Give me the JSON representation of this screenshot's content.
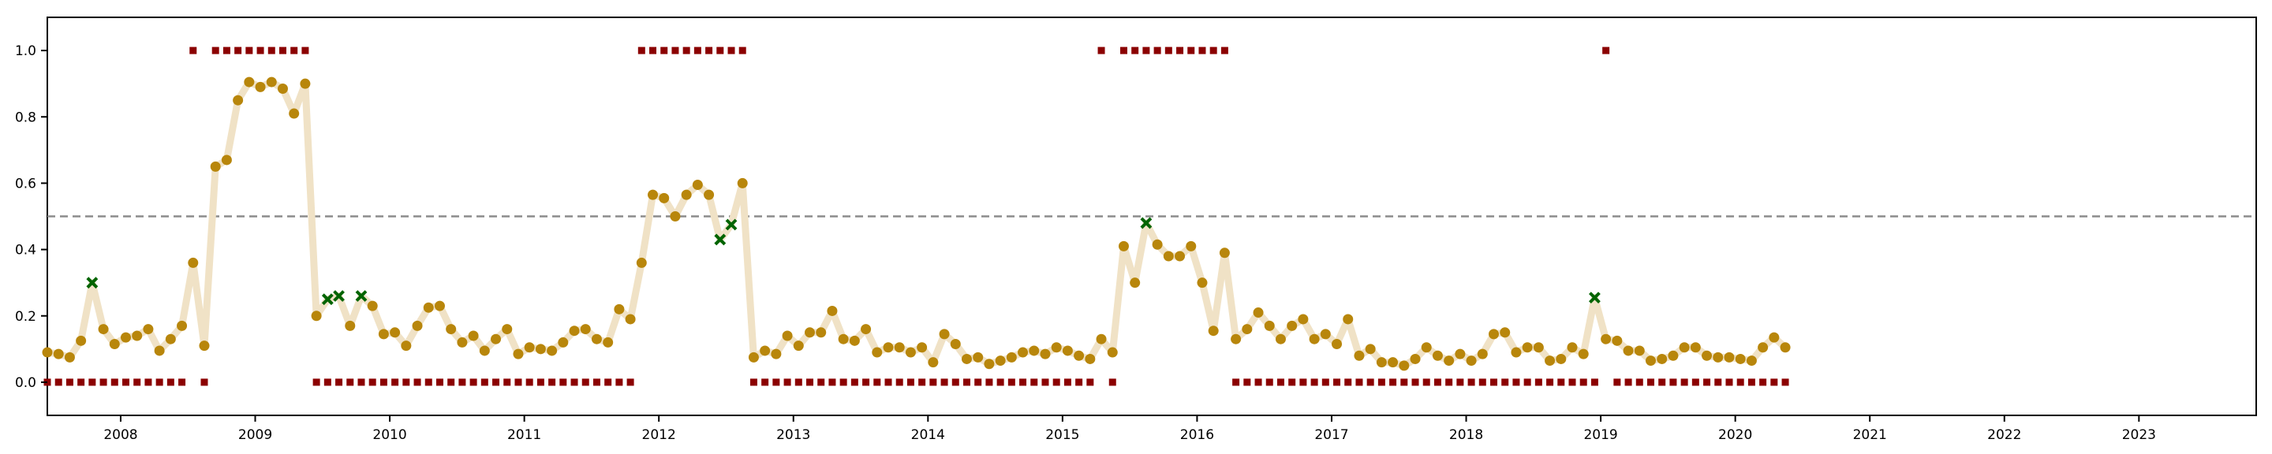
{
  "chart_data": {
    "type": "line",
    "x_axis": {
      "kind": "date",
      "range": [
        "2007-06-15",
        "2023-11-15"
      ],
      "ticks": [
        "2008",
        "2009",
        "2010",
        "2011",
        "2012",
        "2013",
        "2014",
        "2015",
        "2016",
        "2017",
        "2018",
        "2019",
        "2020",
        "2021",
        "2022",
        "2023"
      ]
    },
    "y_axis": {
      "range": [
        -0.1,
        1.1
      ],
      "ticks": [
        "0.0",
        "0.2",
        "0.4",
        "0.6",
        "0.8",
        "1.0"
      ]
    },
    "grid": false,
    "legend": "none",
    "reference_line": {
      "y": 0.5,
      "style": "dashed",
      "color": "#8c8c8c"
    },
    "colors": {
      "line": "#f0e2c6",
      "probability": "#b8860b",
      "flagged": "#006400",
      "binary": "#8b0000"
    },
    "x": [
      "2007-06",
      "2007-07",
      "2007-08",
      "2007-09",
      "2007-10",
      "2007-11",
      "2007-12",
      "2008-01",
      "2008-02",
      "2008-03",
      "2008-04",
      "2008-05",
      "2008-06",
      "2008-07",
      "2008-08",
      "2008-09",
      "2008-10",
      "2008-11",
      "2008-12",
      "2009-01",
      "2009-02",
      "2009-03",
      "2009-04",
      "2009-05",
      "2009-06",
      "2009-07",
      "2009-08",
      "2009-09",
      "2009-10",
      "2009-11",
      "2009-12",
      "2010-01",
      "2010-02",
      "2010-03",
      "2010-04",
      "2010-05",
      "2010-06",
      "2010-07",
      "2010-08",
      "2010-09",
      "2010-10",
      "2010-11",
      "2010-12",
      "2011-01",
      "2011-02",
      "2011-03",
      "2011-04",
      "2011-05",
      "2011-06",
      "2011-07",
      "2011-08",
      "2011-09",
      "2011-10",
      "2011-11",
      "2011-12",
      "2012-01",
      "2012-02",
      "2012-03",
      "2012-04",
      "2012-05",
      "2012-06",
      "2012-07",
      "2012-08",
      "2012-09",
      "2012-10",
      "2012-11",
      "2012-12",
      "2013-01",
      "2013-02",
      "2013-03",
      "2013-04",
      "2013-05",
      "2013-06",
      "2013-07",
      "2013-08",
      "2013-09",
      "2013-10",
      "2013-11",
      "2013-12",
      "2014-01",
      "2014-02",
      "2014-03",
      "2014-04",
      "2014-05",
      "2014-06",
      "2014-07",
      "2014-08",
      "2014-09",
      "2014-10",
      "2014-11",
      "2014-12",
      "2015-01",
      "2015-02",
      "2015-03",
      "2015-04",
      "2015-05",
      "2015-06",
      "2015-07",
      "2015-08",
      "2015-09",
      "2015-10",
      "2015-11",
      "2015-12",
      "2016-01",
      "2016-02",
      "2016-03",
      "2016-04",
      "2016-05",
      "2016-06",
      "2016-07",
      "2016-08",
      "2016-09",
      "2016-10",
      "2016-11",
      "2016-12",
      "2017-01",
      "2017-02",
      "2017-03",
      "2017-04",
      "2017-05",
      "2017-06",
      "2017-07",
      "2017-08",
      "2017-09",
      "2017-10",
      "2017-11",
      "2017-12",
      "2018-01",
      "2018-02",
      "2018-03",
      "2018-04",
      "2018-05",
      "2018-06",
      "2018-07",
      "2018-08",
      "2018-09",
      "2018-10",
      "2018-11",
      "2018-12",
      "2019-01",
      "2019-02",
      "2019-03",
      "2019-04",
      "2019-05",
      "2019-06",
      "2019-07",
      "2019-08",
      "2019-09",
      "2019-10",
      "2019-11",
      "2019-12",
      "2020-01",
      "2020-02",
      "2020-03",
      "2020-04",
      "2020-05"
    ],
    "series": [
      {
        "marker": "circle",
        "values": [
          0.09,
          0.085,
          0.075,
          0.125,
          0.3,
          0.16,
          0.115,
          0.135,
          0.14,
          0.16,
          0.095,
          0.13,
          0.17,
          0.36,
          0.11,
          0.65,
          0.67,
          0.85,
          0.905,
          0.89,
          0.905,
          0.885,
          0.81,
          0.9,
          0.2,
          0.25,
          0.26,
          0.17,
          0.26,
          0.23,
          0.145,
          0.15,
          0.11,
          0.17,
          0.225,
          0.23,
          0.16,
          0.12,
          0.14,
          0.095,
          0.13,
          0.16,
          0.085,
          0.105,
          0.1,
          0.095,
          0.12,
          0.155,
          0.16,
          0.13,
          0.12,
          0.22,
          0.19,
          0.36,
          0.565,
          0.555,
          0.5,
          0.565,
          0.595,
          0.565,
          0.43,
          0.475,
          0.6,
          0.075,
          0.095,
          0.085,
          0.14,
          0.11,
          0.15,
          0.15,
          0.215,
          0.13,
          0.125,
          0.16,
          0.09,
          0.105,
          0.105,
          0.09,
          0.105,
          0.06,
          0.145,
          0.115,
          0.07,
          0.075,
          0.055,
          0.065,
          0.075,
          0.09,
          0.095,
          0.085,
          0.105,
          0.095,
          0.08,
          0.07,
          0.13,
          0.09,
          0.41,
          0.3,
          0.48,
          0.415,
          0.38,
          0.38,
          0.41,
          0.3,
          0.155,
          0.39,
          0.13,
          0.16,
          0.21,
          0.17,
          0.13,
          0.17,
          0.19,
          0.13,
          0.145,
          0.115,
          0.19,
          0.08,
          0.1,
          0.06,
          0.06,
          0.05,
          0.07,
          0.105,
          0.08,
          0.065,
          0.085,
          0.065,
          0.085,
          0.145,
          0.15,
          0.09,
          0.105,
          0.105,
          0.065,
          0.07,
          0.105,
          0.085,
          0.255,
          0.13,
          0.125,
          0.095,
          0.095,
          0.065,
          0.07,
          0.08,
          0.105,
          0.105,
          0.08,
          0.075,
          0.075,
          0.07,
          0.065,
          0.105,
          0.135,
          0.105
        ]
      },
      {
        "marker": "square",
        "values": [
          0,
          0,
          0,
          0,
          0,
          0,
          0,
          0,
          0,
          0,
          0,
          0,
          0,
          1,
          0,
          1,
          1,
          1,
          1,
          1,
          1,
          1,
          1,
          1,
          0,
          0,
          0,
          0,
          0,
          0,
          0,
          0,
          0,
          0,
          0,
          0,
          0,
          0,
          0,
          0,
          0,
          0,
          0,
          0,
          0,
          0,
          0,
          0,
          0,
          0,
          0,
          0,
          0,
          1,
          1,
          1,
          1,
          1,
          1,
          1,
          1,
          1,
          1,
          0,
          0,
          0,
          0,
          0,
          0,
          0,
          0,
          0,
          0,
          0,
          0,
          0,
          0,
          0,
          0,
          0,
          0,
          0,
          0,
          0,
          0,
          0,
          0,
          0,
          0,
          0,
          0,
          0,
          0,
          0,
          1,
          0,
          1,
          1,
          1,
          1,
          1,
          1,
          1,
          1,
          1,
          1,
          0,
          0,
          0,
          0,
          0,
          0,
          0,
          0,
          0,
          0,
          0,
          0,
          0,
          0,
          0,
          0,
          0,
          0,
          0,
          0,
          0,
          0,
          0,
          0,
          0,
          0,
          0,
          0,
          0,
          0,
          0,
          0,
          0,
          1,
          0,
          0,
          0,
          0,
          0,
          0,
          0,
          0,
          0,
          0,
          0,
          0,
          0,
          0,
          0,
          0
        ]
      }
    ]
  }
}
